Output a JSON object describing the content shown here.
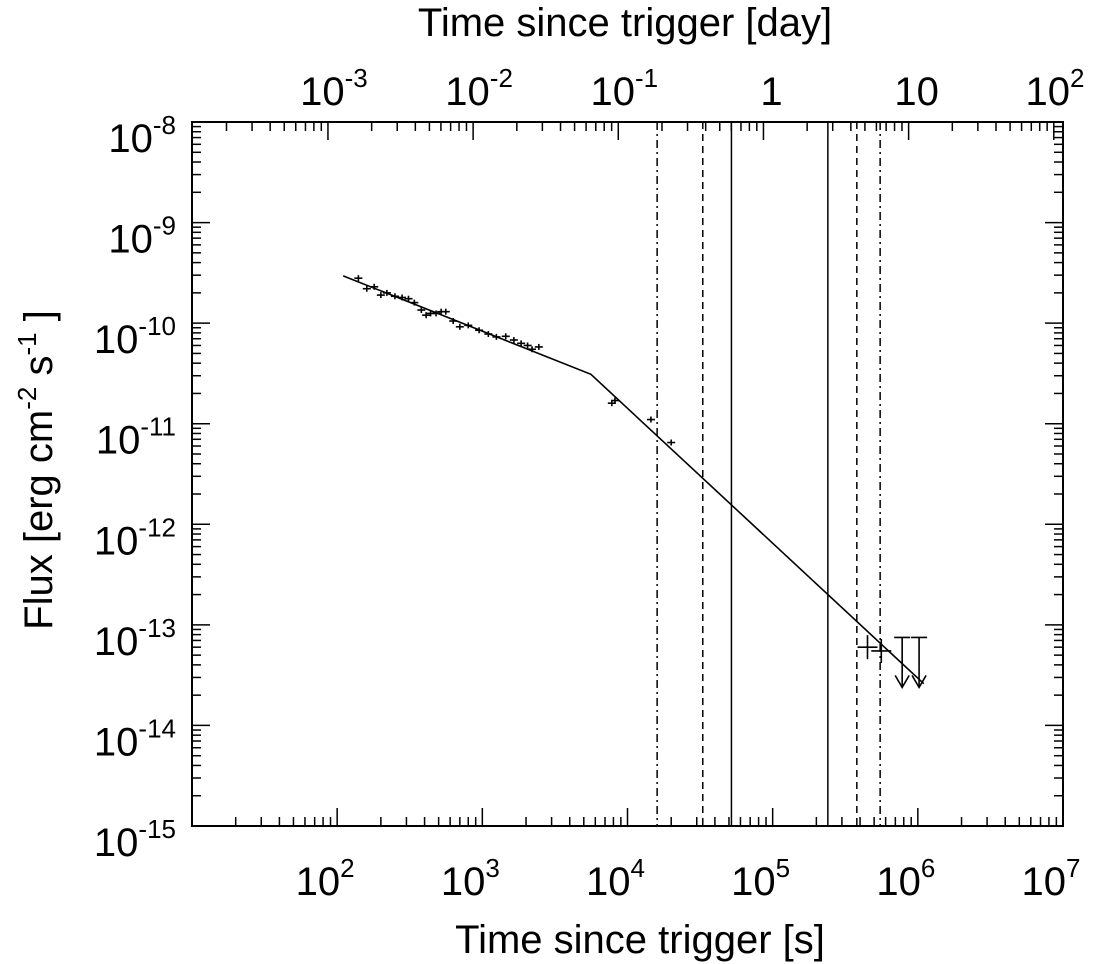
{
  "chart_data": {
    "type": "scatter",
    "xlabel": "Time since trigger [s]",
    "x2label": "Time since trigger [day]",
    "ylabel": "Flux [erg cm-2 s-1 ]",
    "xscale": "log",
    "yscale": "log",
    "xlim": [
      10,
      10000000
    ],
    "ylim": [
      1e-15,
      1e-08
    ],
    "x_tick_labels": [
      {
        "value": 100,
        "base": "10",
        "exp": "2"
      },
      {
        "value": 1000,
        "base": "10",
        "exp": "3"
      },
      {
        "value": 10000,
        "base": "10",
        "exp": "4"
      },
      {
        "value": 100000,
        "base": "10",
        "exp": "5"
      },
      {
        "value": 1000000,
        "base": "10",
        "exp": "6"
      },
      {
        "value": 10000000,
        "base": "10",
        "exp": "7"
      }
    ],
    "x2_tick_labels": [
      {
        "value": 0.001,
        "base": "10",
        "exp": "-3"
      },
      {
        "value": 0.01,
        "base": "10",
        "exp": "-2"
      },
      {
        "value": 0.1,
        "base": "10",
        "exp": "-1"
      },
      {
        "value": 1,
        "base": "1",
        "exp": ""
      },
      {
        "value": 10,
        "base": "10",
        "exp": ""
      },
      {
        "value": 100,
        "base": "10",
        "exp": "2"
      }
    ],
    "y_tick_labels": [
      {
        "value": 1e-08,
        "base": "10",
        "exp": "-8"
      },
      {
        "value": 1e-09,
        "base": "10",
        "exp": "-9"
      },
      {
        "value": 1e-10,
        "base": "10",
        "exp": "-10"
      },
      {
        "value": 1e-11,
        "base": "10",
        "exp": "-11"
      },
      {
        "value": 1e-12,
        "base": "10",
        "exp": "-12"
      },
      {
        "value": 1e-13,
        "base": "10",
        "exp": "-13"
      },
      {
        "value": 1e-14,
        "base": "10",
        "exp": "-14"
      },
      {
        "value": 1e-15,
        "base": "10",
        "exp": "-15"
      }
    ],
    "series": [
      {
        "kind": "points",
        "points": [
          {
            "x": 140,
            "y": 2.8e-10
          },
          {
            "x": 160,
            "y": 2.2e-10
          },
          {
            "x": 180,
            "y": 2.3e-10
          },
          {
            "x": 200,
            "y": 1.9e-10
          },
          {
            "x": 220,
            "y": 2e-10
          },
          {
            "x": 250,
            "y": 1.85e-10
          },
          {
            "x": 280,
            "y": 1.8e-10
          },
          {
            "x": 310,
            "y": 1.75e-10
          },
          {
            "x": 340,
            "y": 1.6e-10
          },
          {
            "x": 380,
            "y": 1.35e-10
          },
          {
            "x": 410,
            "y": 1.2e-10
          },
          {
            "x": 440,
            "y": 1.25e-10
          },
          {
            "x": 480,
            "y": 1.25e-10
          },
          {
            "x": 520,
            "y": 1.3e-10
          },
          {
            "x": 560,
            "y": 1.3e-10
          },
          {
            "x": 630,
            "y": 1.05e-10
          },
          {
            "x": 700,
            "y": 9.2e-11
          },
          {
            "x": 800,
            "y": 9.5e-11
          },
          {
            "x": 950,
            "y": 8.5e-11
          },
          {
            "x": 1100,
            "y": 7.8e-11
          },
          {
            "x": 1250,
            "y": 7.3e-11
          },
          {
            "x": 1450,
            "y": 7.4e-11
          },
          {
            "x": 1650,
            "y": 6.8e-11
          },
          {
            "x": 1850,
            "y": 6.3e-11
          },
          {
            "x": 2050,
            "y": 6e-11
          },
          {
            "x": 2200,
            "y": 5.5e-11
          },
          {
            "x": 2450,
            "y": 5.8e-11
          },
          {
            "x": 7800,
            "y": 1.6e-11
          },
          {
            "x": 8200,
            "y": 1.7e-11
          },
          {
            "x": 14500,
            "y": 1.1e-11
          },
          {
            "x": 20000,
            "y": 6.5e-12
          }
        ]
      },
      {
        "kind": "late-points",
        "points": [
          {
            "x": 450000,
            "y": 6e-14
          },
          {
            "x": 560000,
            "y": 5.5e-14
          }
        ]
      },
      {
        "kind": "upper-limits",
        "points": [
          {
            "x": 780000,
            "y": 7.5e-14
          },
          {
            "x": 1020000,
            "y": 7.5e-14
          }
        ]
      },
      {
        "kind": "model",
        "points": [
          {
            "x": 110,
            "y": 2.95e-10
          },
          {
            "x": 5600,
            "y": 3.1e-11
          },
          {
            "x": 1100000,
            "y": 2.6e-14
          }
        ]
      }
    ],
    "vertical_lines": [
      {
        "x": 16000,
        "style": "dashdot"
      },
      {
        "x": 33000,
        "style": "dashed"
      },
      {
        "x": 52000,
        "style": "solid"
      },
      {
        "x": 240000,
        "style": "solid"
      },
      {
        "x": 380000,
        "style": "dashed"
      },
      {
        "x": 550000,
        "style": "dashdot"
      }
    ],
    "grid": false,
    "legend": "none"
  }
}
